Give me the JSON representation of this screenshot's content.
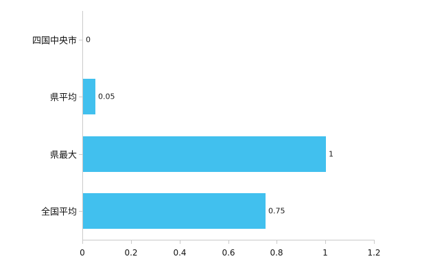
{
  "chart_data": {
    "type": "bar",
    "orientation": "horizontal",
    "title": "",
    "xlabel": "",
    "ylabel": "",
    "categories": [
      "四国中央市",
      "県平均",
      "県最大",
      "全国平均"
    ],
    "values": [
      0,
      0.05,
      1,
      0.75
    ],
    "value_labels": [
      "0",
      "0.05",
      "1",
      "0.75"
    ],
    "xlim": [
      0,
      1.2
    ],
    "x_ticks": [
      0,
      0.2,
      0.4,
      0.6,
      0.8,
      1,
      1.2
    ],
    "x_tick_labels": [
      "0",
      "0.2",
      "0.4",
      "0.6",
      "0.8",
      "1",
      "1.2"
    ],
    "legend": null,
    "grid": false,
    "colors": {
      "bar": "#41c0ee",
      "axis": "#c9c9c9",
      "label_text": "#111111",
      "value_text": "#1a1a1a",
      "background": "#ffffff"
    }
  }
}
